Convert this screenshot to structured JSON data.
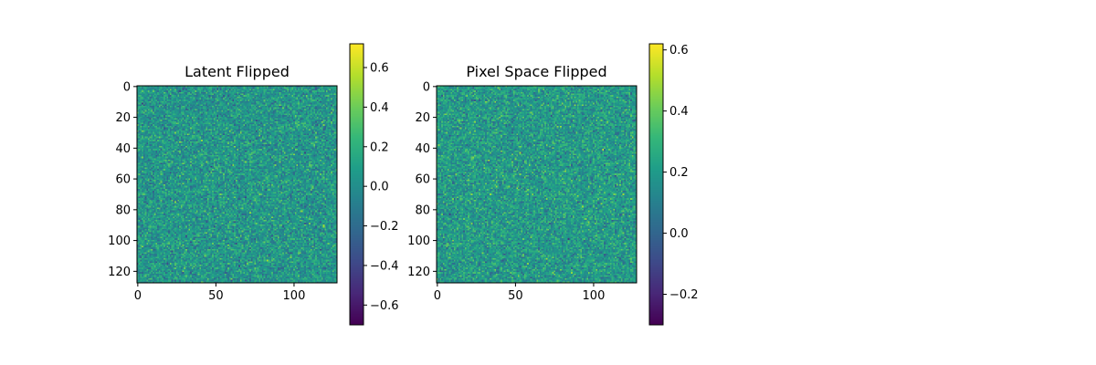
{
  "chart_data": [
    {
      "type": "heatmap",
      "title": "Latent Flipped",
      "xlabel": "",
      "ylabel": "",
      "grid": false,
      "colormap": "viridis",
      "shape": [
        128,
        128
      ],
      "xlim": [
        0,
        127
      ],
      "ylim": [
        127,
        0
      ],
      "x_ticks": [
        0,
        50,
        100
      ],
      "x_tick_labels": [
        "0",
        "50",
        "100"
      ],
      "y_ticks": [
        0,
        20,
        40,
        60,
        80,
        100,
        120
      ],
      "y_tick_labels": [
        "0",
        "20",
        "40",
        "60",
        "80",
        "100",
        "120"
      ],
      "value_range": [
        -0.7,
        0.72
      ],
      "colorbar_ticks": [
        -0.6,
        -0.4,
        -0.2,
        0.0,
        0.2,
        0.4,
        0.6
      ],
      "colorbar_tick_labels": [
        "−0.6",
        "−0.4",
        "−0.2",
        "0.0",
        "0.2",
        "0.4",
        "0.6"
      ],
      "noise_mean": 0.05,
      "noise_std": 0.14
    },
    {
      "type": "heatmap",
      "title": "Pixel Space Flipped",
      "xlabel": "",
      "ylabel": "",
      "grid": false,
      "colormap": "viridis",
      "shape": [
        128,
        128
      ],
      "xlim": [
        0,
        127
      ],
      "ylim": [
        127,
        0
      ],
      "x_ticks": [
        0,
        50,
        100
      ],
      "x_tick_labels": [
        "0",
        "50",
        "100"
      ],
      "y_ticks": [
        0,
        20,
        40,
        60,
        80,
        100,
        120
      ],
      "y_tick_labels": [
        "0",
        "20",
        "40",
        "60",
        "80",
        "100",
        "120"
      ],
      "value_range": [
        -0.3,
        0.62
      ],
      "colorbar_ticks": [
        -0.2,
        0.0,
        0.2,
        0.4,
        0.6
      ],
      "colorbar_tick_labels": [
        "−0.2",
        "0.0",
        "0.2",
        "0.4",
        "0.6"
      ],
      "noise_mean": 0.2,
      "noise_std": 0.09
    }
  ]
}
